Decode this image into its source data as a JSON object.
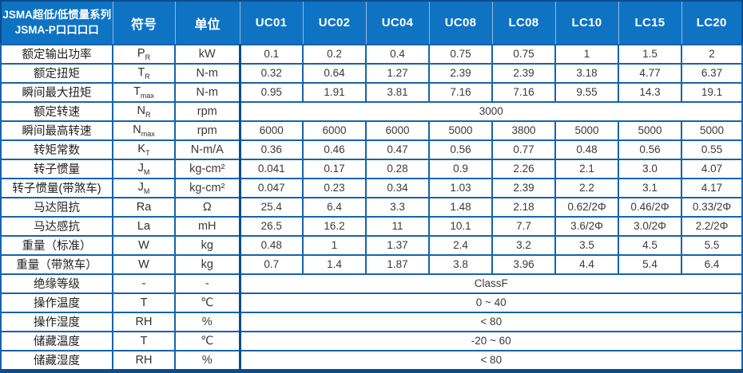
{
  "colors": {
    "header_bg": "#0f73c4",
    "grid_border": "#1663ad",
    "outer_border": "#0d4c8c",
    "header_divider": "#93b7dc",
    "header_text": "#ffffff",
    "body_text": "#3a3a3a"
  },
  "header": {
    "title_line1": "JSMA超低/低惯量系列",
    "title_line2": "JSMA-P口口口口",
    "symbol_col": "符号",
    "unit_col": "单位",
    "models": [
      "UC01",
      "UC02",
      "UC04",
      "UC08",
      "LC08",
      "LC10",
      "LC15",
      "LC20"
    ]
  },
  "rows": [
    {
      "label": "额定输出功率",
      "symbol": "P",
      "subscript": "R",
      "unit": "kW",
      "values": [
        "0.1",
        "0.2",
        "0.4",
        "0.75",
        "0.75",
        "1",
        "1.5",
        "2"
      ]
    },
    {
      "label": "额定扭矩",
      "symbol": "T",
      "subscript": "R",
      "unit": "N-m",
      "values": [
        "0.32",
        "0.64",
        "1.27",
        "2.39",
        "2.39",
        "3.18",
        "4.77",
        "6.37"
      ]
    },
    {
      "label": "瞬间最大扭矩",
      "symbol": "T",
      "subscript": "max",
      "unit": "N-m",
      "values": [
        "0.95",
        "1.91",
        "3.81",
        "7.16",
        "7.16",
        "9.55",
        "14.3",
        "19.1"
      ]
    },
    {
      "label": "额定转速",
      "symbol": "N",
      "subscript": "R",
      "unit": "rpm",
      "merged_value": "3000"
    },
    {
      "label": "瞬间最高转速",
      "symbol": "N",
      "subscript": "max",
      "unit": "rpm",
      "values": [
        "6000",
        "6000",
        "6000",
        "5000",
        "3800",
        "5000",
        "5000",
        "5000"
      ]
    },
    {
      "label": "转矩常数",
      "symbol": "K",
      "subscript": "T",
      "unit": "N-m/A",
      "values": [
        "0.36",
        "0.46",
        "0.47",
        "0.56",
        "0.77",
        "0.48",
        "0.56",
        "0.55"
      ]
    },
    {
      "label": "转子惯量",
      "symbol": "J",
      "subscript": "M",
      "unit": "kg-cm²",
      "values": [
        "0.041",
        "0.17",
        "0.28",
        "0.9",
        "2.26",
        "2.1",
        "3.0",
        "4.07"
      ]
    },
    {
      "label": "转子惯量(带煞车)",
      "symbol": "J",
      "subscript": "M",
      "unit": "kg-cm²",
      "values": [
        "0.047",
        "0.23",
        "0.34",
        "1.03",
        "2.39",
        "2.2",
        "3.1",
        "4.17"
      ]
    },
    {
      "label": "马达阻抗",
      "symbol": "Ra",
      "subscript": "",
      "unit": "Ω",
      "values": [
        "25.4",
        "6.4",
        "3.3",
        "1.48",
        "2.18",
        "0.62/2Φ",
        "0.46/2Φ",
        "0.33/2Φ"
      ]
    },
    {
      "label": "马达感抗",
      "symbol": "La",
      "subscript": "",
      "unit": "mH",
      "values": [
        "26.5",
        "16.2",
        "11",
        "10.1",
        "7.7",
        "3.6/2Φ",
        "3.0/2Φ",
        "2.2/2Φ"
      ]
    },
    {
      "label": "重量（标准）",
      "symbol": "W",
      "subscript": "",
      "unit": "kg",
      "values": [
        "0.48",
        "1",
        "1.37",
        "2.4",
        "3.2",
        "3.5",
        "4.5",
        "5.5"
      ]
    },
    {
      "label": "重量（带煞车）",
      "symbol": "W",
      "subscript": "",
      "unit": "kg",
      "values": [
        "0.7",
        "1.4",
        "1.87",
        "3.8",
        "3.96",
        "4.4",
        "5.4",
        "6.4"
      ]
    },
    {
      "label": "绝缘等级",
      "symbol": "-",
      "subscript": "",
      "unit": "-",
      "merged_value": "ClassF"
    },
    {
      "label": "操作温度",
      "symbol": "T",
      "subscript": "",
      "unit": "℃",
      "merged_value": "0 ~ 40"
    },
    {
      "label": "操作湿度",
      "symbol": "RH",
      "subscript": "",
      "unit": "%",
      "merged_value": "< 80"
    },
    {
      "label": "储藏温度",
      "symbol": "T",
      "subscript": "",
      "unit": "℃",
      "merged_value": "-20 ~ 60"
    },
    {
      "label": "储藏湿度",
      "symbol": "RH",
      "subscript": "",
      "unit": "%",
      "merged_value": "< 80"
    }
  ]
}
